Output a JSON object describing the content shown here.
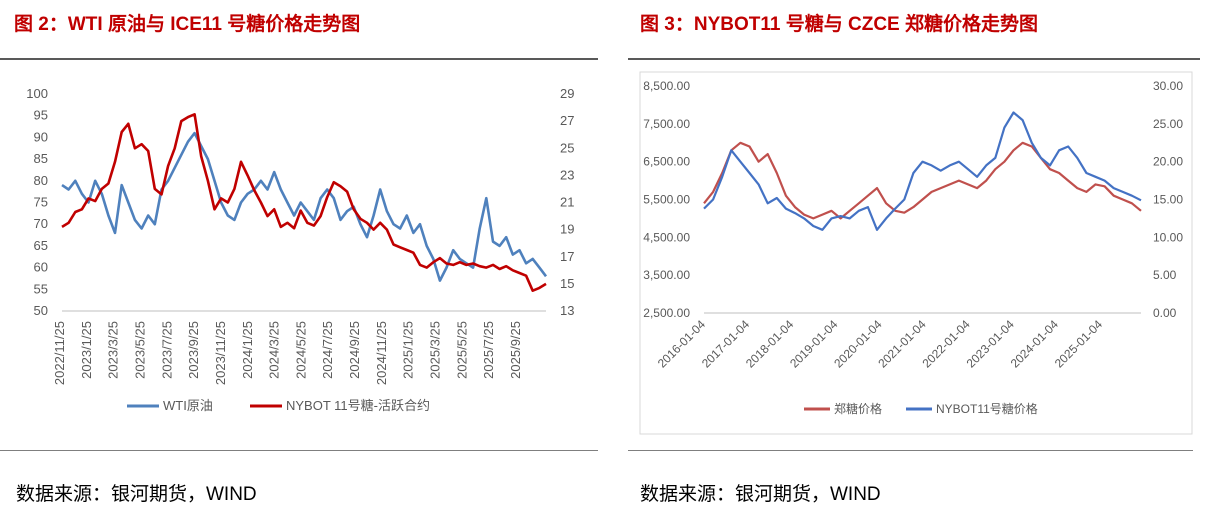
{
  "colors": {
    "title_red": "#c00000",
    "wti_blue": "#4f81bd",
    "sugar_red": "#c00000",
    "zz_red": "#c0504d",
    "nybot_blue": "#4472c4"
  },
  "left": {
    "title": "图 2：WTI 原油与 ICE11 号糖价格走势图",
    "source": "数据来源：银河期货，WIND"
  },
  "right": {
    "title": "图 3：NYBOT11 号糖与 CZCE 郑糖价格走势图",
    "source": "数据来源：银河期货，WIND"
  },
  "chart_data": [
    {
      "type": "line",
      "title": "图 2：WTI 原油与 ICE11 号糖价格走势图",
      "x_ticks": [
        "2022/11/25",
        "2023/1/25",
        "2023/3/25",
        "2023/5/25",
        "2023/7/25",
        "2023/9/25",
        "2023/11/25",
        "2024/1/25",
        "2024/3/25",
        "2024/5/25",
        "2024/7/25",
        "2024/9/25",
        "2024/11/25",
        "2025/1/25",
        "2025/3/25",
        "2025/5/25",
        "2025/7/25",
        "2025/9/25"
      ],
      "y_left": {
        "range": [
          50,
          100
        ],
        "ticks": [
          "100",
          "95",
          "90",
          "85",
          "80",
          "75",
          "70",
          "65",
          "60",
          "55",
          "50"
        ]
      },
      "y_right": {
        "range": [
          13,
          29
        ],
        "ticks": [
          "29",
          "27",
          "25",
          "23",
          "21",
          "19",
          "17",
          "15",
          "13"
        ]
      },
      "legend": [
        "WTI原油",
        "NYBOT 11号糖-活跃合约"
      ],
      "legend_position": "bottom",
      "series": [
        {
          "name": "WTI原油",
          "axis": "left",
          "values": [
            79,
            78,
            80,
            77,
            75,
            80,
            77,
            72,
            68,
            79,
            75,
            71,
            69,
            72,
            70,
            78,
            80,
            83,
            86,
            89,
            91,
            88,
            85,
            80,
            75,
            72,
            71,
            75,
            77,
            78,
            80,
            78,
            82,
            78,
            75,
            72,
            75,
            73,
            71,
            76,
            78,
            76,
            71,
            73,
            74,
            70,
            67,
            72,
            78,
            73,
            70,
            69,
            72,
            68,
            70,
            65,
            62,
            57,
            60,
            64,
            62,
            61,
            60,
            69,
            76,
            66,
            65,
            67,
            63,
            64,
            61,
            62,
            60,
            58
          ]
        },
        {
          "name": "NYBOT 11号糖-活跃合约",
          "axis": "right",
          "values": [
            19.2,
            19.5,
            20.3,
            20.5,
            21.3,
            21.1,
            22.0,
            22.4,
            24.0,
            26.2,
            26.8,
            25.0,
            25.3,
            24.8,
            22.0,
            21.6,
            23.7,
            25.0,
            27.0,
            27.3,
            27.5,
            24.4,
            22.6,
            20.5,
            21.3,
            21.0,
            22.0,
            24.0,
            23.0,
            21.9,
            21.0,
            20.0,
            20.5,
            19.2,
            19.5,
            19.1,
            20.4,
            19.5,
            19.3,
            20.0,
            21.4,
            22.5,
            22.2,
            21.8,
            20.5,
            19.8,
            19.5,
            19.0,
            19.5,
            19.0,
            17.9,
            17.7,
            17.5,
            17.3,
            16.4,
            16.2,
            16.6,
            16.9,
            16.5,
            16.4,
            16.6,
            16.4,
            16.5,
            16.3,
            16.2,
            16.4,
            16.1,
            16.3,
            16.0,
            15.8,
            15.6,
            14.5,
            14.7,
            15.0
          ]
        }
      ]
    },
    {
      "type": "line",
      "title": "图 3：NYBOT11 号糖与 CZCE 郑糖价格走势图",
      "x_ticks": [
        "2016-01-04",
        "2017-01-04",
        "2018-01-04",
        "2019-01-04",
        "2020-01-04",
        "2021-01-04",
        "2022-01-04",
        "2023-01-04",
        "2024-01-04",
        "2025-01-04"
      ],
      "y_left": {
        "range": [
          2500,
          8500
        ],
        "ticks": [
          "8,500.00",
          "7,500.00",
          "6,500.00",
          "5,500.00",
          "4,500.00",
          "3,500.00",
          "2,500.00"
        ]
      },
      "y_right": {
        "range": [
          0,
          30
        ],
        "ticks": [
          "30.00",
          "25.00",
          "20.00",
          "15.00",
          "10.00",
          "5.00",
          "0.00"
        ]
      },
      "legend": [
        "郑糖价格",
        "NYBOT11号糖价格"
      ],
      "legend_position": "bottom",
      "series": [
        {
          "name": "郑糖价格",
          "axis": "left",
          "values": [
            5400,
            5700,
            6200,
            6800,
            7000,
            6900,
            6500,
            6700,
            6200,
            5600,
            5300,
            5100,
            5000,
            5100,
            5200,
            5000,
            5200,
            5400,
            5600,
            5800,
            5400,
            5200,
            5150,
            5300,
            5500,
            5700,
            5800,
            5900,
            6000,
            5900,
            5800,
            6000,
            6300,
            6500,
            6800,
            7000,
            6900,
            6600,
            6300,
            6200,
            6000,
            5800,
            5700,
            5900,
            5850,
            5600,
            5500,
            5400,
            5200
          ]
        },
        {
          "name": "NYBOT11号糖价格",
          "axis": "right",
          "values": [
            13.8,
            15.0,
            18.0,
            21.5,
            20.0,
            18.5,
            17.0,
            14.5,
            15.2,
            13.8,
            13.2,
            12.5,
            11.5,
            11.0,
            12.5,
            12.8,
            12.5,
            13.5,
            14.0,
            11.0,
            12.5,
            13.8,
            15.0,
            18.5,
            20.0,
            19.5,
            18.8,
            19.5,
            20.0,
            19.0,
            18.0,
            19.5,
            20.5,
            24.5,
            26.5,
            25.5,
            22.5,
            20.5,
            19.5,
            21.5,
            22.0,
            20.5,
            18.5,
            18.0,
            17.5,
            16.5,
            16.0,
            15.5,
            14.9
          ]
        }
      ]
    }
  ]
}
